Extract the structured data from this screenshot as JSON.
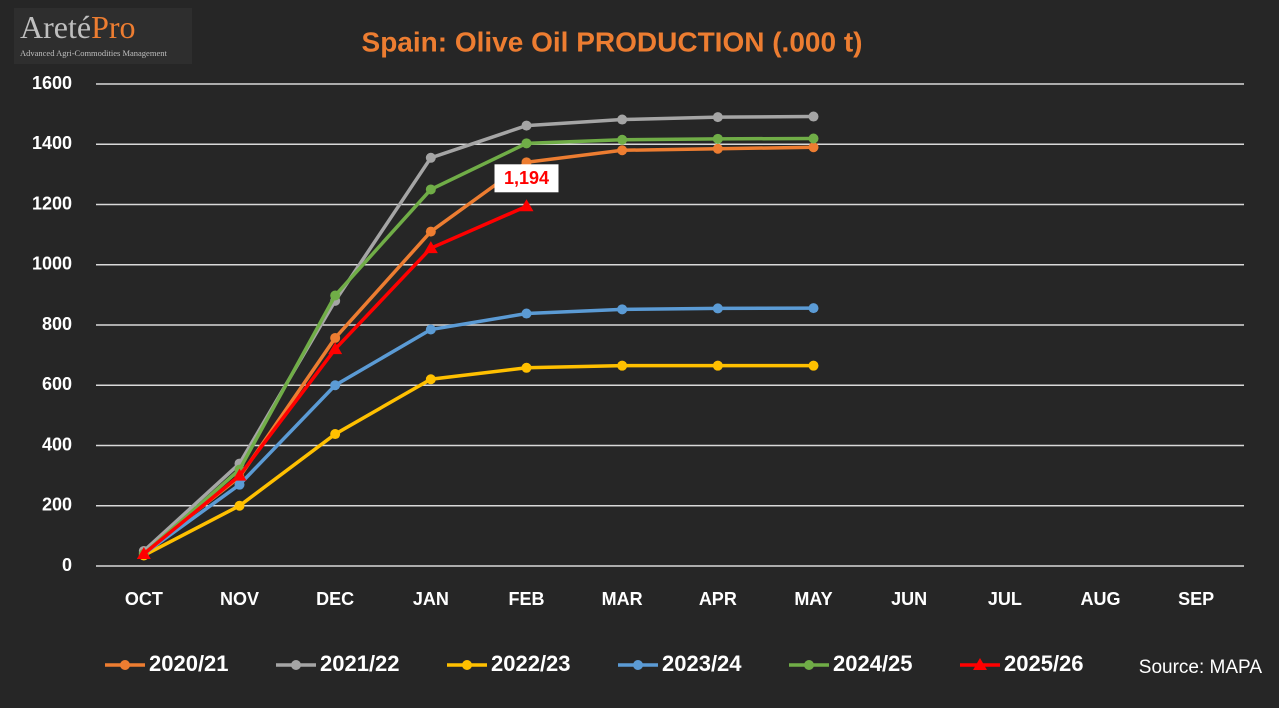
{
  "logo": {
    "name": "Areté",
    "suffix": "Pro",
    "tagline": "Advanced Agri-Commodities Management"
  },
  "chart_data": {
    "type": "line",
    "title": "Spain: Olive Oil PRODUCTION (.000 t)",
    "categories": [
      "OCT",
      "NOV",
      "DEC",
      "JAN",
      "FEB",
      "MAR",
      "APR",
      "MAY",
      "JUN",
      "JUL",
      "AUG",
      "SEP"
    ],
    "series": [
      {
        "name": "2020/21",
        "color": "#ED7D31",
        "marker": "circle",
        "values": [
          45,
          295,
          757,
          1110,
          1340,
          1380,
          1385,
          1390,
          null,
          null,
          null,
          null
        ]
      },
      {
        "name": "2021/22",
        "color": "#A5A5A5",
        "marker": "circle",
        "values": [
          50,
          340,
          880,
          1355,
          1462,
          1482,
          1490,
          1492,
          null,
          null,
          null,
          null
        ]
      },
      {
        "name": "2022/23",
        "color": "#FFC000",
        "marker": "circle",
        "values": [
          35,
          200,
          438,
          620,
          658,
          665,
          665,
          665,
          null,
          null,
          null,
          null
        ]
      },
      {
        "name": "2023/24",
        "color": "#5B9BD5",
        "marker": "circle",
        "values": [
          40,
          270,
          600,
          785,
          838,
          852,
          855,
          856,
          null,
          null,
          null,
          null
        ]
      },
      {
        "name": "2024/25",
        "color": "#70AD47",
        "marker": "circle",
        "values": [
          40,
          320,
          898,
          1250,
          1403,
          1415,
          1418,
          1419,
          null,
          null,
          null,
          null
        ]
      },
      {
        "name": "2025/26",
        "color": "#FF0000",
        "marker": "triangle",
        "values": [
          40,
          300,
          720,
          1055,
          1194,
          null,
          null,
          null,
          null,
          null,
          null,
          null
        ],
        "value_labels": [
          null,
          null,
          null,
          null,
          "1,194",
          null,
          null,
          null,
          null,
          null,
          null,
          null
        ]
      }
    ],
    "ylim": [
      0,
      1600
    ],
    "yticks": [
      0,
      200,
      400,
      600,
      800,
      1000,
      1200,
      1400,
      1600
    ],
    "grid": true,
    "legend": "bottom",
    "source": "Source: MAPA"
  }
}
